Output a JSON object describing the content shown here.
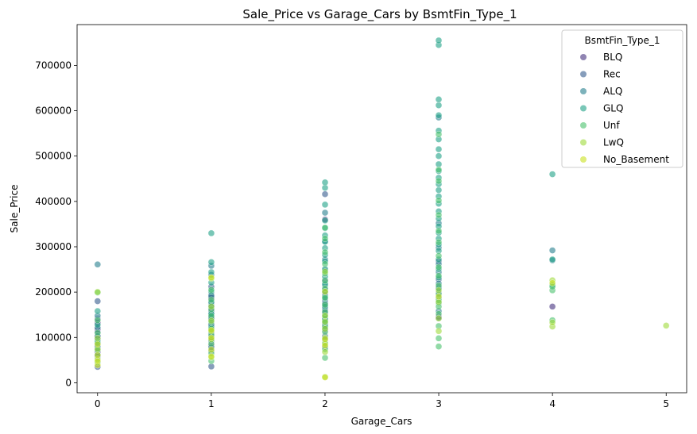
{
  "chart_data": {
    "type": "scatter",
    "title": "Sale_Price vs Garage_Cars by BsmtFin_Type_1",
    "xlabel": "Garage_Cars",
    "ylabel": "Sale_Price",
    "xlim": [
      -0.18,
      5.18
    ],
    "ylim": [
      -22000,
      790000
    ],
    "x_ticks": [
      0,
      1,
      2,
      3,
      4,
      5
    ],
    "y_ticks": [
      0,
      100000,
      200000,
      300000,
      400000,
      500000,
      600000,
      700000
    ],
    "grid": false,
    "legend": {
      "title": "BsmtFin_Type_1",
      "placement": "top-right"
    },
    "series": [
      {
        "name": "BLQ",
        "color": "#46327e",
        "points": [
          [
            0,
            68000
          ],
          [
            0,
            87000
          ],
          [
            0,
            102000
          ],
          [
            0,
            118000
          ],
          [
            0,
            132000
          ],
          [
            1,
            82000
          ],
          [
            1,
            101000
          ],
          [
            1,
            118000
          ],
          [
            1,
            128000
          ],
          [
            1,
            139000
          ],
          [
            1,
            148000
          ],
          [
            1,
            165000
          ],
          [
            1,
            187000
          ],
          [
            2,
            95000
          ],
          [
            2,
            118000
          ],
          [
            2,
            128000
          ],
          [
            2,
            138000
          ],
          [
            2,
            152000
          ],
          [
            2,
            171000
          ],
          [
            2,
            199000
          ],
          [
            2,
            360000
          ],
          [
            3,
            146000
          ],
          [
            3,
            210000
          ],
          [
            4,
            168000
          ]
        ]
      },
      {
        "name": "Rec",
        "color": "#365c8d",
        "points": [
          [
            0,
            35000
          ],
          [
            0,
            58000
          ],
          [
            0,
            77000
          ],
          [
            0,
            96000
          ],
          [
            0,
            112000
          ],
          [
            0,
            141000
          ],
          [
            0,
            180000
          ],
          [
            1,
            36000
          ],
          [
            1,
            70000
          ],
          [
            1,
            92000
          ],
          [
            1,
            108000
          ],
          [
            1,
            129000
          ],
          [
            1,
            142000
          ],
          [
            1,
            158000
          ],
          [
            1,
            176000
          ],
          [
            1,
            194000
          ],
          [
            1,
            212000
          ],
          [
            2,
            79000
          ],
          [
            2,
            103000
          ],
          [
            2,
            116000
          ],
          [
            2,
            129000
          ],
          [
            2,
            136000
          ],
          [
            2,
            144000
          ],
          [
            2,
            163000
          ],
          [
            2,
            181000
          ],
          [
            2,
            205000
          ],
          [
            2,
            226000
          ],
          [
            2,
            416000
          ],
          [
            3,
            143000
          ],
          [
            3,
            198000
          ],
          [
            3,
            228000
          ],
          [
            3,
            268000
          ]
        ]
      },
      {
        "name": "ALQ",
        "color": "#277f8e",
        "points": [
          [
            0,
            62000
          ],
          [
            0,
            81000
          ],
          [
            0,
            103000
          ],
          [
            0,
            122000
          ],
          [
            0,
            148000
          ],
          [
            0,
            261000
          ],
          [
            1,
            78000
          ],
          [
            1,
            94000
          ],
          [
            1,
            111000
          ],
          [
            1,
            126000
          ],
          [
            1,
            143000
          ],
          [
            1,
            152000
          ],
          [
            1,
            170000
          ],
          [
            1,
            191000
          ],
          [
            1,
            238000
          ],
          [
            1,
            258000
          ],
          [
            2,
            98000
          ],
          [
            2,
            122000
          ],
          [
            2,
            142000
          ],
          [
            2,
            158000
          ],
          [
            2,
            175000
          ],
          [
            2,
            192000
          ],
          [
            2,
            215000
          ],
          [
            2,
            248000
          ],
          [
            2,
            272000
          ],
          [
            2,
            312000
          ],
          [
            2,
            375000
          ],
          [
            3,
            158000
          ],
          [
            3,
            187000
          ],
          [
            3,
            219000
          ],
          [
            3,
            244000
          ],
          [
            3,
            262000
          ],
          [
            3,
            298000
          ],
          [
            3,
            352000
          ],
          [
            3,
            585000
          ],
          [
            4,
            292000
          ],
          [
            4,
            270000
          ]
        ]
      },
      {
        "name": "GLQ",
        "color": "#1fa187",
        "points": [
          [
            0,
            92000
          ],
          [
            0,
            128000
          ],
          [
            0,
            158000
          ],
          [
            1,
            122000
          ],
          [
            1,
            152000
          ],
          [
            1,
            178000
          ],
          [
            1,
            201000
          ],
          [
            1,
            221000
          ],
          [
            1,
            244000
          ],
          [
            1,
            266000
          ],
          [
            1,
            330000
          ],
          [
            2,
            139000
          ],
          [
            2,
            168000
          ],
          [
            2,
            186000
          ],
          [
            2,
            201000
          ],
          [
            2,
            218000
          ],
          [
            2,
            234000
          ],
          [
            2,
            251000
          ],
          [
            2,
            268000
          ],
          [
            2,
            282000
          ],
          [
            2,
            297000
          ],
          [
            2,
            311000
          ],
          [
            2,
            325000
          ],
          [
            2,
            341000
          ],
          [
            2,
            358000
          ],
          [
            2,
            393000
          ],
          [
            2,
            430000
          ],
          [
            2,
            442000
          ],
          [
            3,
            176000
          ],
          [
            3,
            208000
          ],
          [
            3,
            232000
          ],
          [
            3,
            251000
          ],
          [
            3,
            272000
          ],
          [
            3,
            291000
          ],
          [
            3,
            305000
          ],
          [
            3,
            318000
          ],
          [
            3,
            331000
          ],
          [
            3,
            345000
          ],
          [
            3,
            362000
          ],
          [
            3,
            378000
          ],
          [
            3,
            395000
          ],
          [
            3,
            411000
          ],
          [
            3,
            425000
          ],
          [
            3,
            438000
          ],
          [
            3,
            452000
          ],
          [
            3,
            467000
          ],
          [
            3,
            482000
          ],
          [
            3,
            500000
          ],
          [
            3,
            515000
          ],
          [
            3,
            537000
          ],
          [
            3,
            556000
          ],
          [
            3,
            590000
          ],
          [
            3,
            612000
          ],
          [
            3,
            625000
          ],
          [
            3,
            745000
          ],
          [
            3,
            755000
          ],
          [
            4,
            460000
          ],
          [
            4,
            272000
          ],
          [
            4,
            215000
          ]
        ]
      },
      {
        "name": "Unf",
        "color": "#4ac16d",
        "points": [
          [
            0,
            45000
          ],
          [
            0,
            72000
          ],
          [
            0,
            88000
          ],
          [
            0,
            110000
          ],
          [
            0,
            138000
          ],
          [
            0,
            199000
          ],
          [
            1,
            48000
          ],
          [
            1,
            65000
          ],
          [
            1,
            86000
          ],
          [
            1,
            105000
          ],
          [
            1,
            119000
          ],
          [
            1,
            134000
          ],
          [
            1,
            147000
          ],
          [
            1,
            162000
          ],
          [
            1,
            183000
          ],
          [
            1,
            205000
          ],
          [
            2,
            55000
          ],
          [
            2,
            74000
          ],
          [
            2,
            88000
          ],
          [
            2,
            112000
          ],
          [
            2,
            124000
          ],
          [
            2,
            133000
          ],
          [
            2,
            147000
          ],
          [
            2,
            156000
          ],
          [
            2,
            172000
          ],
          [
            2,
            188000
          ],
          [
            2,
            208000
          ],
          [
            2,
            225000
          ],
          [
            2,
            241000
          ],
          [
            2,
            262000
          ],
          [
            2,
            288000
          ],
          [
            2,
            318000
          ],
          [
            2,
            342000
          ],
          [
            3,
            80000
          ],
          [
            3,
            98000
          ],
          [
            3,
            125000
          ],
          [
            3,
            152000
          ],
          [
            3,
            168000
          ],
          [
            3,
            182000
          ],
          [
            3,
            195000
          ],
          [
            3,
            214000
          ],
          [
            3,
            236000
          ],
          [
            3,
            255000
          ],
          [
            3,
            280000
          ],
          [
            3,
            310000
          ],
          [
            3,
            335000
          ],
          [
            3,
            370000
          ],
          [
            3,
            402000
          ],
          [
            3,
            445000
          ],
          [
            3,
            470000
          ],
          [
            3,
            548000
          ],
          [
            4,
            138000
          ],
          [
            4,
            204000
          ],
          [
            4,
            212000
          ]
        ]
      },
      {
        "name": "LwQ",
        "color": "#9fda3a",
        "points": [
          [
            0,
            52000
          ],
          [
            0,
            74000
          ],
          [
            0,
            98000
          ],
          [
            0,
            200000
          ],
          [
            1,
            56000
          ],
          [
            1,
            96000
          ],
          [
            1,
            114000
          ],
          [
            1,
            137000
          ],
          [
            1,
            168000
          ],
          [
            1,
            230000
          ],
          [
            2,
            13000
          ],
          [
            2,
            68000
          ],
          [
            2,
            86000
          ],
          [
            2,
            99000
          ],
          [
            2,
            119000
          ],
          [
            2,
            135000
          ],
          [
            2,
            148000
          ],
          [
            2,
            245000
          ],
          [
            3,
            114000
          ],
          [
            3,
            142000
          ],
          [
            3,
            178000
          ],
          [
            3,
            204000
          ],
          [
            4,
            124000
          ],
          [
            4,
            133000
          ],
          [
            4,
            226000
          ],
          [
            5,
            126000
          ]
        ]
      },
      {
        "name": "No_Basement",
        "color": "#cae11f",
        "points": [
          [
            0,
            39000
          ],
          [
            0,
            48000
          ],
          [
            0,
            61000
          ],
          [
            0,
            85000
          ],
          [
            1,
            58000
          ],
          [
            1,
            73000
          ],
          [
            1,
            99000
          ],
          [
            1,
            116000
          ],
          [
            1,
            232000
          ],
          [
            2,
            12000
          ],
          [
            2,
            82000
          ],
          [
            2,
            96000
          ],
          [
            2,
            201000
          ],
          [
            3,
            190000
          ],
          [
            4,
            220000
          ]
        ]
      }
    ]
  }
}
